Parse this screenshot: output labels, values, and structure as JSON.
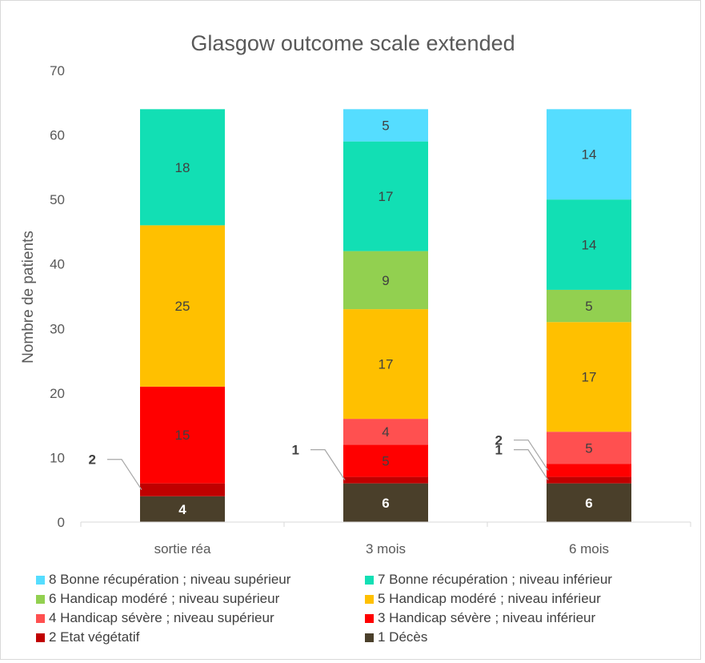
{
  "chart_data": {
    "type": "bar",
    "stacked": true,
    "title": "Glasgow outcome scale extended",
    "ylabel": "Nombre de patients",
    "xlabel": "",
    "ylim": [
      0,
      70
    ],
    "yticks": [
      0,
      10,
      20,
      30,
      40,
      50,
      60,
      70
    ],
    "grid": false,
    "legend_position": "bottom",
    "categories": [
      "sortie réa",
      "3 mois",
      "6 mois"
    ],
    "series": [
      {
        "name": "1 Décès",
        "color": "#4a3f2a",
        "values": [
          4,
          6,
          6
        ]
      },
      {
        "name": "2 Etat végétatif",
        "color": "#c00000",
        "values": [
          2,
          1,
          1
        ]
      },
      {
        "name": "3 Handicap sévère ; niveau inférieur",
        "color": "#ff0000",
        "values": [
          15,
          5,
          2
        ]
      },
      {
        "name": "4 Handicap sévère ; niveau supérieur",
        "color": "#ff5050",
        "values": [
          0,
          4,
          5
        ]
      },
      {
        "name": "5 Handicap modéré ; niveau inférieur",
        "color": "#ffc000",
        "values": [
          25,
          17,
          17
        ]
      },
      {
        "name": "6 Handicap modéré ; niveau supérieur",
        "color": "#92d050",
        "values": [
          0,
          9,
          5
        ]
      },
      {
        "name": "7 Bonne récupération ; niveau inférieur",
        "color": "#12dfb4",
        "values": [
          18,
          17,
          14
        ]
      },
      {
        "name": "8 Bonne récupération ; niveau supérieur",
        "color": "#55ddff",
        "values": [
          0,
          5,
          14
        ]
      }
    ],
    "data_labels": [
      {
        "category": "sortie réa",
        "series": "1 Décès",
        "text": "4",
        "bold": true,
        "light": true
      },
      {
        "category": "sortie réa",
        "series": "2 Etat végétatif",
        "text": "2",
        "bold": true,
        "callout": "left"
      },
      {
        "category": "sortie réa",
        "series": "3 Handicap sévère ; niveau inférieur",
        "text": "15"
      },
      {
        "category": "sortie réa",
        "series": "5 Handicap modéré ; niveau inférieur",
        "text": "25"
      },
      {
        "category": "sortie réa",
        "series": "7 Bonne récupération ; niveau inférieur",
        "text": "18"
      },
      {
        "category": "3 mois",
        "series": "1 Décès",
        "text": "6",
        "bold": true,
        "light": true
      },
      {
        "category": "3 mois",
        "series": "2 Etat végétatif",
        "text": "1",
        "bold": true,
        "callout": "left"
      },
      {
        "category": "3 mois",
        "series": "3 Handicap sévère ; niveau inférieur",
        "text": "5"
      },
      {
        "category": "3 mois",
        "series": "4 Handicap sévère ; niveau supérieur",
        "text": "4"
      },
      {
        "category": "3 mois",
        "series": "5 Handicap modéré ; niveau inférieur",
        "text": "17"
      },
      {
        "category": "3 mois",
        "series": "6 Handicap modéré ; niveau supérieur",
        "text": "9"
      },
      {
        "category": "3 mois",
        "series": "7 Bonne récupération ; niveau inférieur",
        "text": "17"
      },
      {
        "category": "3 mois",
        "series": "8 Bonne récupération ; niveau supérieur",
        "text": "5"
      },
      {
        "category": "6 mois",
        "series": "1 Décès",
        "text": "6",
        "bold": true,
        "light": true
      },
      {
        "category": "6 mois",
        "series": "2 Etat végétatif",
        "text": "1",
        "bold": true,
        "callout": "left"
      },
      {
        "category": "6 mois",
        "series": "3 Handicap sévère ; niveau inférieur",
        "text": "2",
        "bold": true,
        "callout": "left"
      },
      {
        "category": "6 mois",
        "series": "4 Handicap sévère ; niveau supérieur",
        "text": "5"
      },
      {
        "category": "6 mois",
        "series": "5 Handicap modéré ; niveau inférieur",
        "text": "17"
      },
      {
        "category": "6 mois",
        "series": "6 Handicap modéré ; niveau supérieur",
        "text": "5"
      },
      {
        "category": "6 mois",
        "series": "7 Bonne récupération ; niveau inférieur",
        "text": "14"
      },
      {
        "category": "6 mois",
        "series": "8 Bonne récupération ; niveau supérieur",
        "text": "14"
      }
    ],
    "legend_order": [
      "8 Bonne récupération ; niveau supérieur",
      "7 Bonne récupération ; niveau inférieur",
      "6 Handicap modéré ; niveau supérieur",
      "5 Handicap modéré ; niveau inférieur",
      "4 Handicap sévère ; niveau supérieur",
      "3 Handicap sévère ; niveau inférieur",
      "2 Etat végétatif",
      "1 Décès"
    ]
  }
}
